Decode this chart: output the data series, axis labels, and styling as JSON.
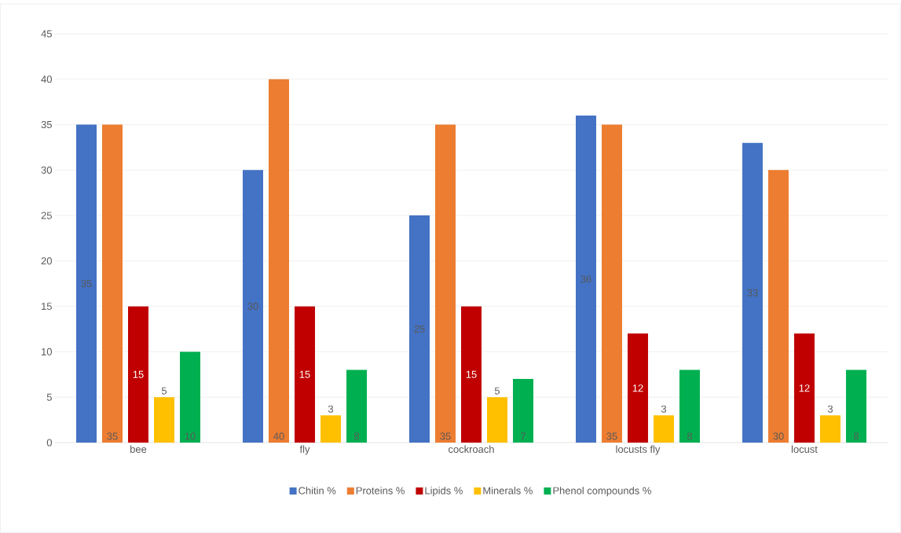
{
  "chart_data": {
    "type": "bar",
    "categories": [
      "bee",
      "fly",
      "cockroach",
      "locusts fly",
      "locust"
    ],
    "series": [
      {
        "name": "Chitin %",
        "color": "#4472c4",
        "values": [
          35,
          30,
          25,
          36,
          33
        ]
      },
      {
        "name": "Proteins %",
        "color": "#ed7d31",
        "values": [
          35,
          40,
          35,
          35,
          30
        ]
      },
      {
        "name": "Lipids %",
        "color": "#c00000",
        "values": [
          15,
          15,
          15,
          12,
          12
        ]
      },
      {
        "name": "Minerals %",
        "color": "#ffc000",
        "values": [
          5,
          3,
          5,
          3,
          3
        ]
      },
      {
        "name": "Phenol compounds %",
        "color": "#00b050",
        "values": [
          10,
          8,
          7,
          8,
          8
        ]
      }
    ],
    "ylim": [
      0,
      45
    ],
    "yticks": [
      0,
      5,
      10,
      15,
      20,
      25,
      30,
      35,
      40,
      45
    ],
    "grid": "y",
    "legend": "bottom",
    "data_labels": true
  }
}
